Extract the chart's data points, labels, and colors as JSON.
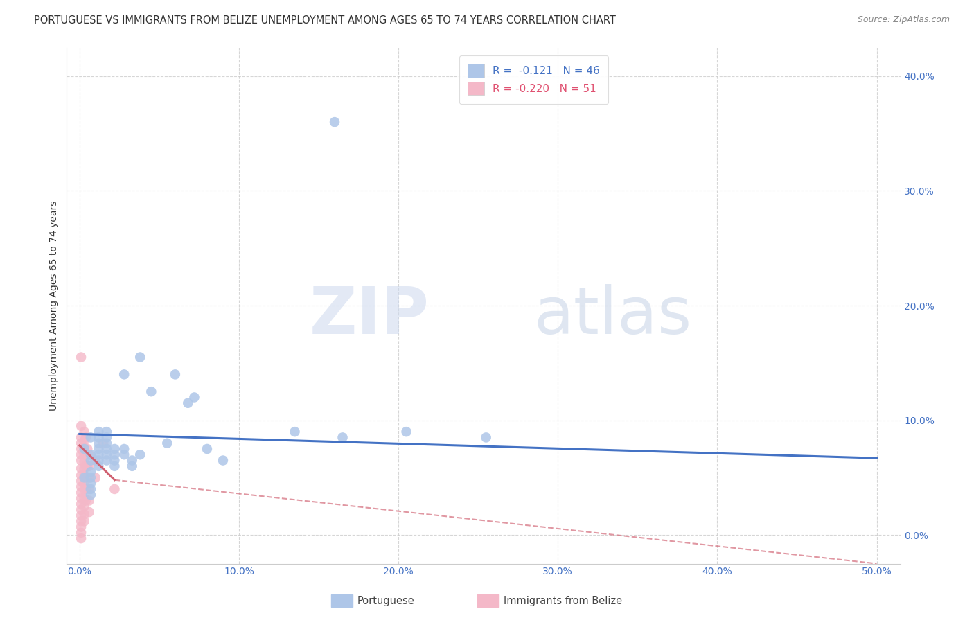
{
  "title": "PORTUGUESE VS IMMIGRANTS FROM BELIZE UNEMPLOYMENT AMONG AGES 65 TO 74 YEARS CORRELATION CHART",
  "source": "Source: ZipAtlas.com",
  "xlabel_ticks": [
    "0.0%",
    "10.0%",
    "20.0%",
    "30.0%",
    "40.0%",
    "50.0%"
  ],
  "xlabel_vals": [
    0.0,
    0.1,
    0.2,
    0.3,
    0.4,
    0.5
  ],
  "ylabel_ticks": [
    "0.0%",
    "10.0%",
    "20.0%",
    "30.0%",
    "40.0%"
  ],
  "ylabel_vals": [
    0.0,
    0.1,
    0.2,
    0.3,
    0.4
  ],
  "xlim": [
    -0.008,
    0.515
  ],
  "ylim": [
    -0.025,
    0.425
  ],
  "ylabel": "Unemployment Among Ages 65 to 74 years",
  "watermark_zip": "ZIP",
  "watermark_atlas": "atlas",
  "legend_entries": [
    {
      "label": "R =  -0.121   N = 46",
      "box_color": "#aec6e8",
      "text_color": "#4472c4"
    },
    {
      "label": "R = -0.220   N = 51",
      "box_color": "#f4b8c8",
      "text_color": "#e05070"
    }
  ],
  "portuguese_scatter": [
    [
      0.003,
      0.075
    ],
    [
      0.003,
      0.05
    ],
    [
      0.007,
      0.085
    ],
    [
      0.007,
      0.07
    ],
    [
      0.007,
      0.065
    ],
    [
      0.007,
      0.055
    ],
    [
      0.007,
      0.05
    ],
    [
      0.007,
      0.045
    ],
    [
      0.007,
      0.04
    ],
    [
      0.007,
      0.035
    ],
    [
      0.012,
      0.09
    ],
    [
      0.012,
      0.085
    ],
    [
      0.012,
      0.08
    ],
    [
      0.012,
      0.075
    ],
    [
      0.012,
      0.07
    ],
    [
      0.012,
      0.065
    ],
    [
      0.012,
      0.06
    ],
    [
      0.017,
      0.09
    ],
    [
      0.017,
      0.085
    ],
    [
      0.017,
      0.08
    ],
    [
      0.017,
      0.075
    ],
    [
      0.017,
      0.07
    ],
    [
      0.017,
      0.065
    ],
    [
      0.022,
      0.075
    ],
    [
      0.022,
      0.07
    ],
    [
      0.022,
      0.065
    ],
    [
      0.022,
      0.06
    ],
    [
      0.028,
      0.14
    ],
    [
      0.028,
      0.075
    ],
    [
      0.028,
      0.07
    ],
    [
      0.033,
      0.065
    ],
    [
      0.033,
      0.06
    ],
    [
      0.038,
      0.155
    ],
    [
      0.038,
      0.07
    ],
    [
      0.045,
      0.125
    ],
    [
      0.055,
      0.08
    ],
    [
      0.06,
      0.14
    ],
    [
      0.068,
      0.115
    ],
    [
      0.072,
      0.12
    ],
    [
      0.08,
      0.075
    ],
    [
      0.09,
      0.065
    ],
    [
      0.135,
      0.09
    ],
    [
      0.165,
      0.085
    ],
    [
      0.205,
      0.09
    ],
    [
      0.255,
      0.085
    ],
    [
      0.16,
      0.36
    ]
  ],
  "portuguese_line": [
    [
      0.0,
      0.088
    ],
    [
      0.5,
      0.067
    ]
  ],
  "belize_scatter": [
    [
      0.001,
      0.155
    ],
    [
      0.001,
      0.095
    ],
    [
      0.001,
      0.085
    ],
    [
      0.001,
      0.08
    ],
    [
      0.001,
      0.075
    ],
    [
      0.001,
      0.07
    ],
    [
      0.001,
      0.065
    ],
    [
      0.001,
      0.058
    ],
    [
      0.001,
      0.052
    ],
    [
      0.001,
      0.047
    ],
    [
      0.001,
      0.042
    ],
    [
      0.001,
      0.037
    ],
    [
      0.001,
      0.032
    ],
    [
      0.001,
      0.027
    ],
    [
      0.001,
      0.022
    ],
    [
      0.001,
      0.017
    ],
    [
      0.001,
      0.012
    ],
    [
      0.001,
      0.007
    ],
    [
      0.001,
      0.002
    ],
    [
      0.001,
      -0.003
    ],
    [
      0.003,
      0.09
    ],
    [
      0.003,
      0.082
    ],
    [
      0.003,
      0.076
    ],
    [
      0.003,
      0.07
    ],
    [
      0.003,
      0.064
    ],
    [
      0.003,
      0.058
    ],
    [
      0.003,
      0.052
    ],
    [
      0.003,
      0.045
    ],
    [
      0.003,
      0.04
    ],
    [
      0.003,
      0.032
    ],
    [
      0.003,
      0.025
    ],
    [
      0.003,
      0.018
    ],
    [
      0.003,
      0.012
    ],
    [
      0.004,
      0.085
    ],
    [
      0.004,
      0.07
    ],
    [
      0.004,
      0.06
    ],
    [
      0.004,
      0.05
    ],
    [
      0.004,
      0.04
    ],
    [
      0.004,
      0.03
    ],
    [
      0.005,
      0.075
    ],
    [
      0.005,
      0.06
    ],
    [
      0.006,
      0.07
    ],
    [
      0.006,
      0.06
    ],
    [
      0.006,
      0.05
    ],
    [
      0.006,
      0.04
    ],
    [
      0.006,
      0.03
    ],
    [
      0.006,
      0.02
    ],
    [
      0.01,
      0.065
    ],
    [
      0.01,
      0.05
    ],
    [
      0.015,
      0.08
    ],
    [
      0.022,
      0.04
    ]
  ],
  "belize_line_solid": [
    [
      0.0,
      0.078
    ],
    [
      0.022,
      0.048
    ]
  ],
  "belize_line_dashed": [
    [
      0.022,
      0.048
    ],
    [
      0.5,
      -0.025
    ]
  ],
  "dot_color_portuguese": "#aec6e8",
  "dot_color_belize": "#f4b8c8",
  "line_color_portuguese": "#4472c4",
  "line_color_belize": "#d06070",
  "background_color": "#ffffff",
  "title_fontsize": 10.5,
  "source_fontsize": 9,
  "axis_label_fontsize": 10,
  "tick_fontsize": 10,
  "legend_fontsize": 11,
  "bottom_legend_labels": [
    "Portuguese",
    "Immigrants from Belize"
  ],
  "bottom_legend_colors": [
    "#aec6e8",
    "#f4b8c8"
  ],
  "grid_color": "#cccccc",
  "tick_color": "#4472c4"
}
